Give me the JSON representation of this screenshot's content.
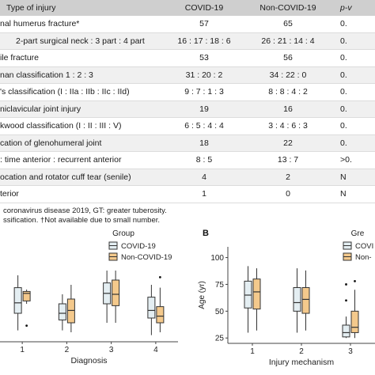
{
  "table": {
    "headers": [
      "Type of injury",
      "COVID-19",
      "Non-COVID-19",
      "p-v"
    ],
    "rows": [
      {
        "label": "nal humerus fracture*",
        "covid": "57",
        "noncovid": "65",
        "p": "0.",
        "indent": 0
      },
      {
        "label": "2-part surgical neck : 3 part : 4 part",
        "covid": "16 : 17 : 18 : 6",
        "noncovid": "26 : 21 : 14 : 4",
        "p": "0.",
        "indent": 1
      },
      {
        "label": "ile fracture",
        "covid": "53",
        "noncovid": "56",
        "p": "0.",
        "indent": 0
      },
      {
        "label": "nan classification 1 : 2 : 3",
        "covid": "31 : 20 : 2",
        "noncovid": "34 : 22 : 0",
        "p": "0.",
        "indent": 0
      },
      {
        "label": "'s classification (I : IIa : IIb : IIc : IId)",
        "covid": "9 : 7 : 1 : 3",
        "noncovid": "8 : 8 : 4 : 2",
        "p": "0.",
        "indent": 0
      },
      {
        "label": "niclavicular joint injury",
        "covid": "19",
        "noncovid": "16",
        "p": "0.",
        "indent": 0
      },
      {
        "label": "kwood classification (I : II : III : V)",
        "covid": "6 : 5 : 4 : 4",
        "noncovid": "3 : 4 : 6 : 3",
        "p": "0.",
        "indent": 0
      },
      {
        "label": "cation of glenohumeral joint",
        "covid": "18",
        "noncovid": "22",
        "p": "0.",
        "indent": 0
      },
      {
        "label": ": time anterior : recurrent anterior",
        "covid": "8 : 5",
        "noncovid": "13 : 7",
        "p": ">0.",
        "indent": 0
      },
      {
        "label": "ocation and rotator cuff tear (senile)",
        "covid": "4",
        "noncovid": "2",
        "p": "N",
        "indent": 0
      },
      {
        "label": "terior",
        "covid": "1",
        "noncovid": "0",
        "p": "N",
        "indent": 0
      }
    ],
    "footnote_1": "coronavirus disease 2019, GT: greater tuberosity.",
    "footnote_2": "ssification. †Not available due to small number."
  },
  "panels": {
    "b_label": "B"
  },
  "colors": {
    "covid": "#e4eef2",
    "noncovid": "#f4c98c",
    "stroke": "#333333",
    "header_bg": "#cfcfcf"
  },
  "chart_data": [
    {
      "type": "box",
      "xlabel": "Diagnosis",
      "ylabel": "",
      "ylim": [
        15,
        95
      ],
      "categories": [
        "1",
        "2",
        "3",
        "4"
      ],
      "legend": {
        "title": "Group",
        "placement": "top-right"
      },
      "series": [
        {
          "name": "COVID-19",
          "boxes": [
            {
              "min": 27,
              "q1": 45,
              "median": 56,
              "q3": 72,
              "max": 85,
              "outliers": []
            },
            {
              "min": 27,
              "q1": 38,
              "median": 45,
              "q3": 55,
              "max": 65,
              "outliers": []
            },
            {
              "min": 35,
              "q1": 55,
              "median": 66,
              "q3": 77,
              "max": 90,
              "outliers": []
            },
            {
              "min": 22,
              "q1": 40,
              "median": 48,
              "q3": 62,
              "max": 75,
              "outliers": []
            }
          ]
        },
        {
          "name": "Non-COVID-19",
          "boxes": [
            {
              "min": 55,
              "q1": 58,
              "median": 66,
              "q3": 68,
              "max": 70,
              "outliers": [
                32
              ]
            },
            {
              "min": 25,
              "q1": 35,
              "median": 48,
              "q3": 60,
              "max": 75,
              "outliers": []
            },
            {
              "min": 35,
              "q1": 53,
              "median": 65,
              "q3": 80,
              "max": 90,
              "outliers": []
            },
            {
              "min": 25,
              "q1": 35,
              "median": 42,
              "q3": 52,
              "max": 72,
              "outliers": [
                83
              ]
            }
          ]
        }
      ]
    },
    {
      "type": "box",
      "xlabel": "Injury mechanism",
      "ylabel": "Age (yr)",
      "ylim": [
        20,
        110
      ],
      "yticks": [
        25,
        50,
        75,
        100
      ],
      "categories": [
        "1",
        "2",
        "3"
      ],
      "legend": {
        "title": "Gre",
        "placement": "top-right"
      },
      "series": [
        {
          "name": "COVI",
          "boxes": [
            {
              "min": 30,
              "q1": 53,
              "median": 65,
              "q3": 78,
              "max": 92,
              "outliers": []
            },
            {
              "min": 30,
              "q1": 50,
              "median": 58,
              "q3": 72,
              "max": 90,
              "outliers": []
            },
            {
              "min": 25,
              "q1": 26,
              "median": 30,
              "q3": 37,
              "max": 45,
              "outliers": [
                60,
                75
              ]
            }
          ]
        },
        {
          "name": "Non-",
          "boxes": [
            {
              "min": 32,
              "q1": 52,
              "median": 68,
              "q3": 80,
              "max": 90,
              "outliers": []
            },
            {
              "min": 32,
              "q1": 48,
              "median": 61,
              "q3": 72,
              "max": 88,
              "outliers": []
            },
            {
              "min": 25,
              "q1": 30,
              "median": 35,
              "q3": 50,
              "max": 70,
              "outliers": [
                78
              ]
            }
          ]
        }
      ]
    }
  ]
}
